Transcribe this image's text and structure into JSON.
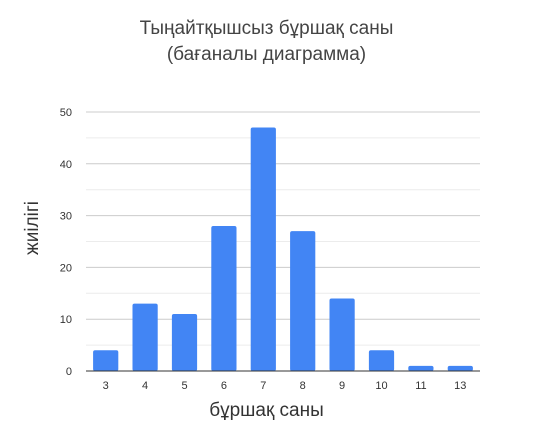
{
  "chart_data": {
    "type": "bar",
    "title_line1": "Тыңайтқышсыз бұршақ саны",
    "title_line2": "(бағаналы диаграмма)",
    "xlabel": "бұршақ саны",
    "ylabel": "жиілігі",
    "categories": [
      "3",
      "4",
      "5",
      "6",
      "7",
      "8",
      "9",
      "10",
      "11",
      "13"
    ],
    "values": [
      4,
      13,
      11,
      28,
      47,
      27,
      14,
      4,
      1,
      1
    ],
    "ylim": [
      0,
      50
    ],
    "yticks": [
      0,
      10,
      20,
      30,
      40,
      50
    ],
    "grid": true,
    "bar_color": "#4285f4"
  }
}
